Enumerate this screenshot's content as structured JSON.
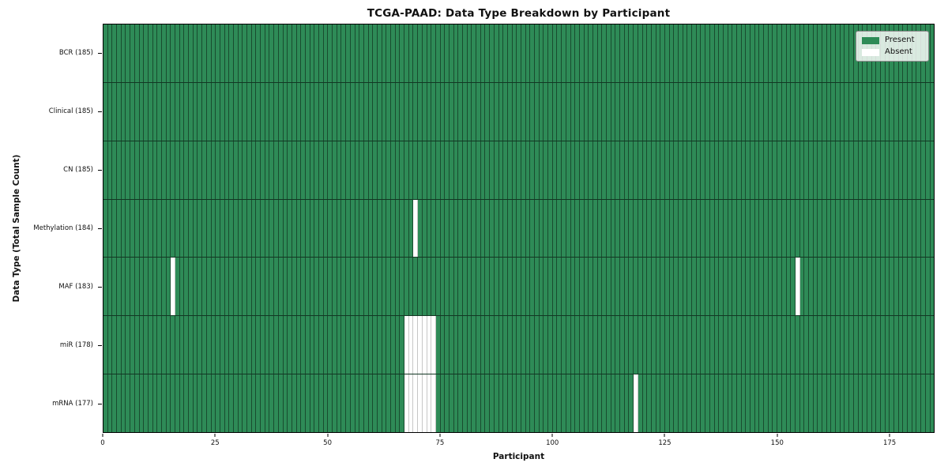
{
  "chart_data": {
    "type": "heatmap",
    "title": "TCGA-PAAD: Data Type Breakdown by Participant",
    "xlabel": "Participant",
    "ylabel": "Data Type (Total Sample Count)",
    "n_participants": 185,
    "xlim": [
      0,
      185
    ],
    "x_ticks": [
      0,
      25,
      50,
      75,
      100,
      125,
      150,
      175
    ],
    "legend_position": "upper right",
    "grid": false,
    "legend": [
      {
        "label": "Present",
        "color": "#2e8b57"
      },
      {
        "label": "Absent",
        "color": "#ffffff"
      }
    ],
    "colors": {
      "present": "#2e8b57",
      "absent": "#ffffff",
      "bar_edge_on_present": "rgba(0,0,0,0.45)",
      "bar_edge_on_absent": "rgba(0,0,0,0.22)",
      "row_separator": "rgba(0,0,0,0.6)"
    },
    "rows": [
      {
        "key": "bcr",
        "label": "BCR (185)",
        "data_type": "BCR",
        "total_samples": 185,
        "absent_participants": []
      },
      {
        "key": "clinical",
        "label": "Clinical (185)",
        "data_type": "Clinical",
        "total_samples": 185,
        "absent_participants": []
      },
      {
        "key": "cn",
        "label": "CN (185)",
        "data_type": "CN",
        "total_samples": 185,
        "absent_participants": []
      },
      {
        "key": "methylation",
        "label": "Methylation (184)",
        "data_type": "Methylation",
        "total_samples": 184,
        "absent_participants": [
          69
        ]
      },
      {
        "key": "maf",
        "label": "MAF (183)",
        "data_type": "MAF",
        "total_samples": 183,
        "absent_participants": [
          15,
          154
        ]
      },
      {
        "key": "mir",
        "label": "miR (178)",
        "data_type": "miR",
        "total_samples": 178,
        "absent_participants": [
          67,
          68,
          69,
          70,
          71,
          72,
          73
        ]
      },
      {
        "key": "mrna",
        "label": "mRNA (177)",
        "data_type": "mRNA",
        "total_samples": 177,
        "absent_participants": [
          67,
          68,
          69,
          70,
          71,
          72,
          73,
          118
        ]
      }
    ]
  }
}
